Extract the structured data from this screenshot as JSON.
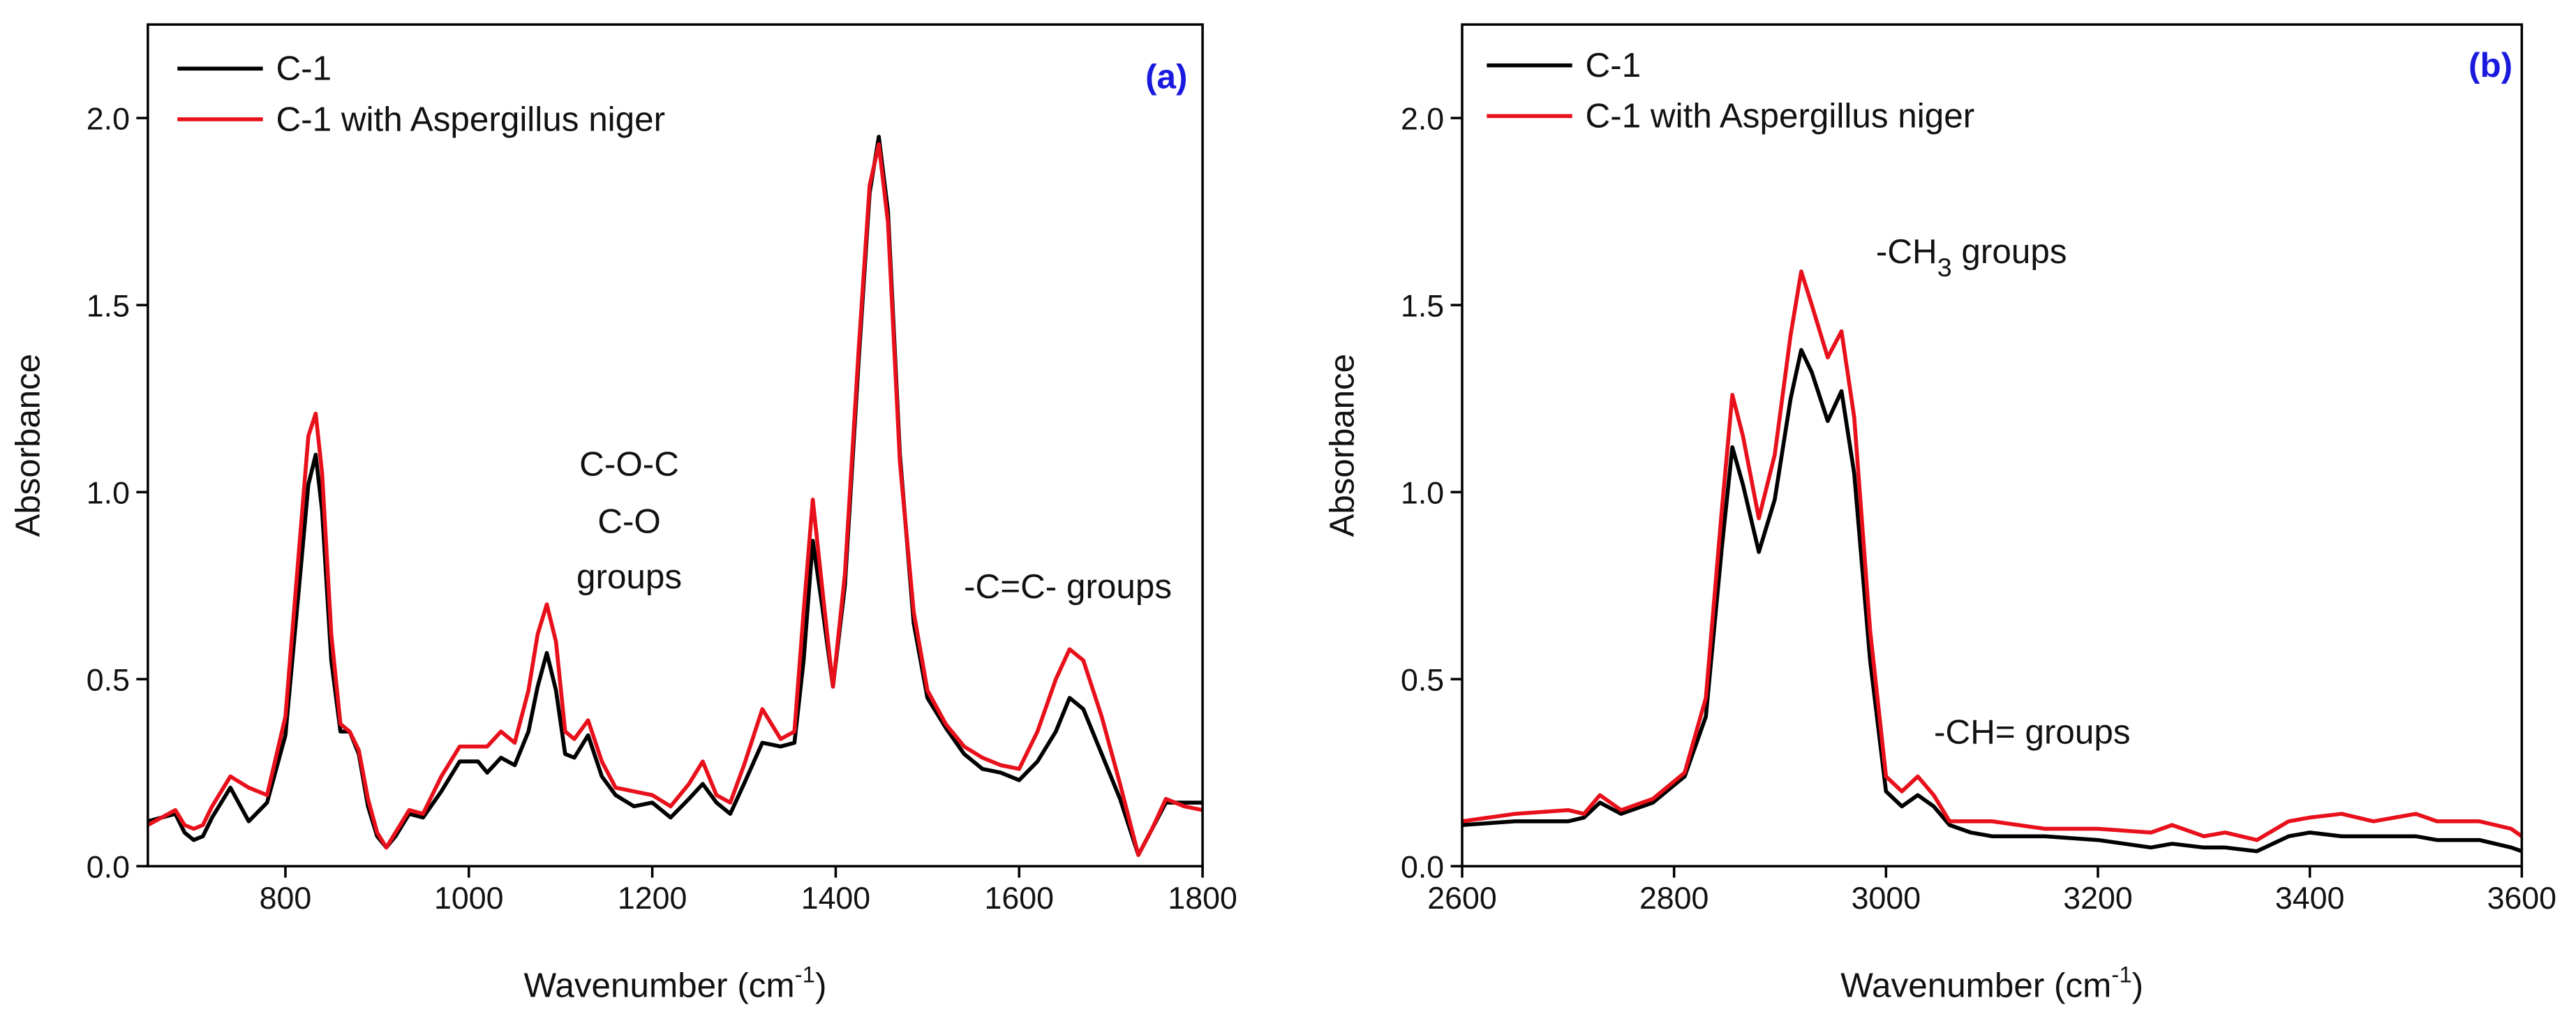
{
  "chart_data": [
    {
      "type": "line",
      "panel_label": "(a)",
      "xlabel": {
        "text": "Wavenumber (cm",
        "sup": "-1",
        "tail": ")"
      },
      "ylabel": "Absorbance",
      "xlim": [
        650,
        1800
      ],
      "ylim": [
        0,
        2.25
      ],
      "xticks": [
        800,
        1000,
        1200,
        1400,
        1600,
        1800
      ],
      "yticks": [
        {
          "value": 0,
          "label": "0.0"
        },
        0.5,
        {
          "value": 1,
          "label": "1.0"
        },
        1.5,
        {
          "value": 2,
          "label": "2.0"
        }
      ],
      "annotations": [
        {
          "text": "C-O-C"
        },
        {
          "text": "C-O"
        },
        {
          "text": "groups"
        },
        {
          "text": "-C=C- groups"
        }
      ],
      "x": [
        650,
        680,
        690,
        700,
        710,
        720,
        740,
        760,
        780,
        800,
        815,
        825,
        833,
        840,
        850,
        860,
        870,
        880,
        890,
        900,
        910,
        920,
        935,
        950,
        970,
        990,
        1010,
        1020,
        1035,
        1050,
        1065,
        1075,
        1085,
        1095,
        1105,
        1115,
        1130,
        1145,
        1160,
        1180,
        1200,
        1220,
        1240,
        1255,
        1270,
        1285,
        1300,
        1320,
        1340,
        1355,
        1365,
        1375,
        1385,
        1397,
        1410,
        1425,
        1437,
        1447,
        1457,
        1470,
        1485,
        1500,
        1520,
        1540,
        1560,
        1580,
        1600,
        1620,
        1640,
        1655,
        1670,
        1690,
        1710,
        1730,
        1745,
        1760,
        1780,
        1800
      ],
      "series": [
        {
          "name": "C-1",
          "color": "#000000",
          "values": [
            0.12,
            0.14,
            0.09,
            0.07,
            0.08,
            0.13,
            0.21,
            0.12,
            0.17,
            0.35,
            0.75,
            1.02,
            1.1,
            0.95,
            0.55,
            0.36,
            0.36,
            0.3,
            0.16,
            0.08,
            0.05,
            0.08,
            0.14,
            0.13,
            0.2,
            0.28,
            0.28,
            0.25,
            0.29,
            0.27,
            0.36,
            0.48,
            0.57,
            0.47,
            0.3,
            0.29,
            0.35,
            0.24,
            0.19,
            0.16,
            0.17,
            0.13,
            0.18,
            0.22,
            0.17,
            0.14,
            0.22,
            0.33,
            0.32,
            0.33,
            0.55,
            0.87,
            0.7,
            0.48,
            0.75,
            1.35,
            1.8,
            1.95,
            1.75,
            1.1,
            0.65,
            0.45,
            0.37,
            0.3,
            0.26,
            0.25,
            0.23,
            0.28,
            0.36,
            0.45,
            0.42,
            0.3,
            0.18,
            0.03,
            0.1,
            0.17,
            0.17,
            0.17
          ]
        },
        {
          "name": "C-1 with Aspergillus niger",
          "color": "#e8101a",
          "values": [
            0.11,
            0.15,
            0.11,
            0.1,
            0.11,
            0.16,
            0.24,
            0.21,
            0.19,
            0.4,
            0.85,
            1.15,
            1.21,
            1.05,
            0.62,
            0.38,
            0.36,
            0.31,
            0.18,
            0.09,
            0.05,
            0.09,
            0.15,
            0.14,
            0.24,
            0.32,
            0.32,
            0.32,
            0.36,
            0.33,
            0.47,
            0.62,
            0.7,
            0.6,
            0.36,
            0.34,
            0.39,
            0.28,
            0.21,
            0.2,
            0.19,
            0.16,
            0.22,
            0.28,
            0.19,
            0.17,
            0.27,
            0.42,
            0.34,
            0.36,
            0.68,
            0.98,
            0.75,
            0.48,
            0.78,
            1.38,
            1.82,
            1.93,
            1.72,
            1.08,
            0.68,
            0.47,
            0.38,
            0.32,
            0.29,
            0.27,
            0.26,
            0.36,
            0.5,
            0.58,
            0.55,
            0.4,
            0.22,
            0.03,
            0.1,
            0.18,
            0.16,
            0.15
          ]
        }
      ]
    },
    {
      "type": "line",
      "panel_label": "(b)",
      "xlabel": {
        "text": "Wavenumber (cm",
        "sup": "-1",
        "tail": ")"
      },
      "ylabel": "Absorbance",
      "xlim": [
        2600,
        3600
      ],
      "ylim": [
        0,
        2.25
      ],
      "xticks": [
        2600,
        2800,
        3000,
        3200,
        3400,
        3600
      ],
      "yticks": [
        {
          "value": 0,
          "label": "0.0"
        },
        0.5,
        {
          "value": 1,
          "label": "1.0"
        },
        1.5,
        {
          "value": 2,
          "label": "2.0"
        }
      ],
      "annotations": [
        {
          "text": "-CH",
          "sub": "3",
          "tail": " groups"
        },
        {
          "text": "-CH= groups"
        }
      ],
      "x": [
        2600,
        2650,
        2700,
        2715,
        2730,
        2750,
        2780,
        2810,
        2830,
        2845,
        2855,
        2865,
        2880,
        2895,
        2910,
        2920,
        2930,
        2945,
        2958,
        2970,
        2985,
        3000,
        3015,
        3030,
        3045,
        3060,
        3080,
        3100,
        3150,
        3200,
        3250,
        3270,
        3300,
        3320,
        3350,
        3380,
        3400,
        3430,
        3460,
        3500,
        3520,
        3560,
        3590,
        3600
      ],
      "series": [
        {
          "name": "C-1",
          "color": "#000000",
          "values": [
            0.11,
            0.12,
            0.12,
            0.13,
            0.17,
            0.14,
            0.17,
            0.24,
            0.4,
            0.85,
            1.12,
            1.02,
            0.84,
            0.98,
            1.25,
            1.38,
            1.32,
            1.19,
            1.27,
            1.05,
            0.55,
            0.2,
            0.16,
            0.19,
            0.16,
            0.11,
            0.09,
            0.08,
            0.08,
            0.07,
            0.05,
            0.06,
            0.05,
            0.05,
            0.04,
            0.08,
            0.09,
            0.08,
            0.08,
            0.08,
            0.07,
            0.07,
            0.05,
            0.04
          ]
        },
        {
          "name": "C-1 with Aspergillus niger",
          "color": "#e8101a",
          "values": [
            0.12,
            0.14,
            0.15,
            0.14,
            0.19,
            0.15,
            0.18,
            0.25,
            0.45,
            0.95,
            1.26,
            1.15,
            0.93,
            1.1,
            1.42,
            1.59,
            1.5,
            1.36,
            1.43,
            1.2,
            0.63,
            0.24,
            0.2,
            0.24,
            0.19,
            0.12,
            0.12,
            0.12,
            0.1,
            0.1,
            0.09,
            0.11,
            0.08,
            0.09,
            0.07,
            0.12,
            0.13,
            0.14,
            0.12,
            0.14,
            0.12,
            0.12,
            0.1,
            0.08
          ]
        }
      ]
    }
  ]
}
